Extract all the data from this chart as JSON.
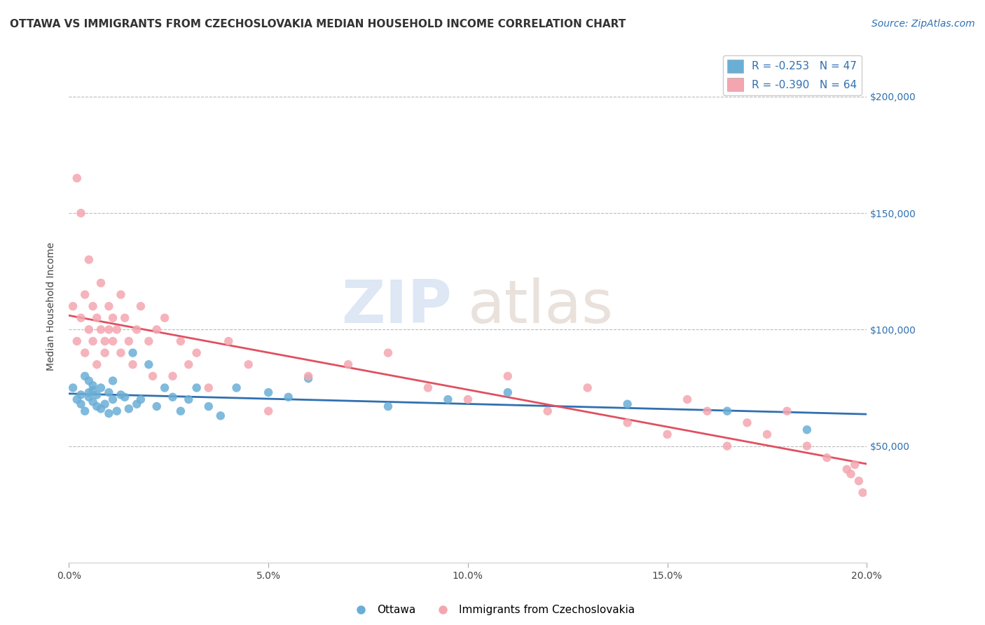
{
  "title": "OTTAWA VS IMMIGRANTS FROM CZECHOSLOVAKIA MEDIAN HOUSEHOLD INCOME CORRELATION CHART",
  "source": "Source: ZipAtlas.com",
  "ylabel": "Median Household Income",
  "xlim": [
    0.0,
    0.2
  ],
  "ylim": [
    0,
    220000
  ],
  "yticks": [
    0,
    50000,
    100000,
    150000,
    200000
  ],
  "ytick_labels": [
    "",
    "$50,000",
    "$100,000",
    "$150,000",
    "$200,000"
  ],
  "xtick_labels": [
    "0.0%",
    "5.0%",
    "10.0%",
    "15.0%",
    "20.0%"
  ],
  "xticks": [
    0.0,
    0.05,
    0.1,
    0.15,
    0.2
  ],
  "blue_color": "#6aaed6",
  "pink_color": "#f4a6b0",
  "blue_line_color": "#3070b0",
  "pink_line_color": "#e05060",
  "blue_label": "Ottawa",
  "pink_label": "Immigrants from Czechoslovakia",
  "legend_r_blue": "R = -0.253",
  "legend_n_blue": "N = 47",
  "legend_r_pink": "R = -0.390",
  "legend_n_pink": "N = 64",
  "blue_scatter_x": [
    0.001,
    0.002,
    0.003,
    0.003,
    0.004,
    0.004,
    0.005,
    0.005,
    0.005,
    0.006,
    0.006,
    0.006,
    0.007,
    0.007,
    0.008,
    0.008,
    0.009,
    0.01,
    0.01,
    0.011,
    0.011,
    0.012,
    0.013,
    0.014,
    0.015,
    0.016,
    0.017,
    0.018,
    0.02,
    0.022,
    0.024,
    0.026,
    0.028,
    0.03,
    0.032,
    0.035,
    0.038,
    0.042,
    0.05,
    0.055,
    0.06,
    0.08,
    0.095,
    0.11,
    0.14,
    0.165,
    0.185
  ],
  "blue_scatter_y": [
    75000,
    70000,
    68000,
    72000,
    65000,
    80000,
    78000,
    73000,
    71000,
    76000,
    69000,
    74000,
    67000,
    72000,
    66000,
    75000,
    68000,
    73000,
    64000,
    70000,
    78000,
    65000,
    72000,
    71000,
    66000,
    90000,
    68000,
    70000,
    85000,
    67000,
    75000,
    71000,
    65000,
    70000,
    75000,
    67000,
    63000,
    75000,
    73000,
    71000,
    79000,
    67000,
    70000,
    73000,
    68000,
    65000,
    57000
  ],
  "pink_scatter_x": [
    0.001,
    0.002,
    0.002,
    0.003,
    0.003,
    0.004,
    0.004,
    0.005,
    0.005,
    0.006,
    0.006,
    0.007,
    0.007,
    0.008,
    0.008,
    0.009,
    0.009,
    0.01,
    0.01,
    0.011,
    0.011,
    0.012,
    0.013,
    0.013,
    0.014,
    0.015,
    0.016,
    0.017,
    0.018,
    0.02,
    0.021,
    0.022,
    0.024,
    0.026,
    0.028,
    0.03,
    0.032,
    0.035,
    0.04,
    0.045,
    0.05,
    0.06,
    0.07,
    0.08,
    0.09,
    0.1,
    0.11,
    0.12,
    0.13,
    0.14,
    0.15,
    0.155,
    0.16,
    0.165,
    0.17,
    0.175,
    0.18,
    0.185,
    0.19,
    0.195,
    0.196,
    0.197,
    0.198,
    0.199
  ],
  "pink_scatter_y": [
    110000,
    95000,
    165000,
    105000,
    150000,
    90000,
    115000,
    100000,
    130000,
    95000,
    110000,
    105000,
    85000,
    100000,
    120000,
    90000,
    95000,
    100000,
    110000,
    105000,
    95000,
    100000,
    115000,
    90000,
    105000,
    95000,
    85000,
    100000,
    110000,
    95000,
    80000,
    100000,
    105000,
    80000,
    95000,
    85000,
    90000,
    75000,
    95000,
    85000,
    65000,
    80000,
    85000,
    90000,
    75000,
    70000,
    80000,
    65000,
    75000,
    60000,
    55000,
    70000,
    65000,
    50000,
    60000,
    55000,
    65000,
    50000,
    45000,
    40000,
    38000,
    42000,
    35000,
    30000
  ],
  "title_fontsize": 11,
  "axis_label_fontsize": 10,
  "tick_fontsize": 10,
  "legend_fontsize": 11,
  "source_fontsize": 10
}
